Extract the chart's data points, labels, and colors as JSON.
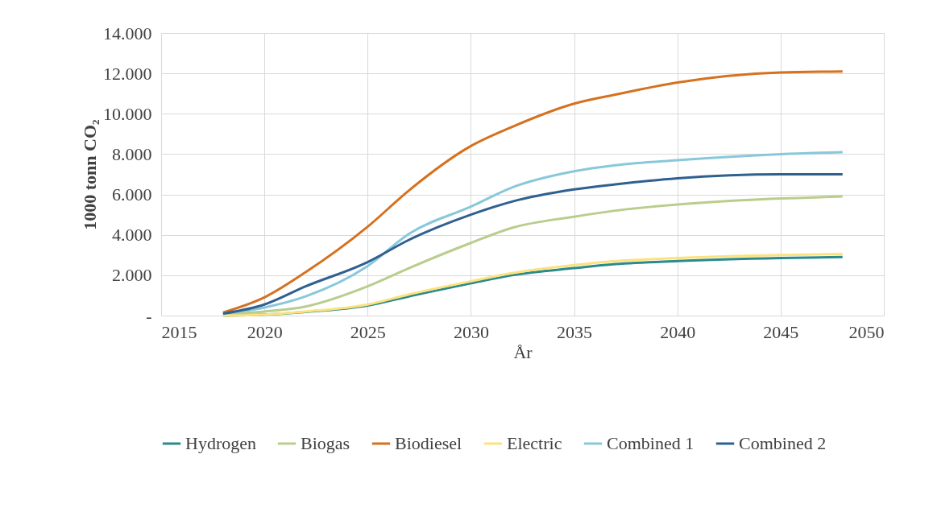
{
  "chart_data": {
    "type": "line",
    "xlabel": "År",
    "ylabel": "1000 tonn CO₂",
    "x": [
      2018,
      2020,
      2022,
      2025,
      2027,
      2030,
      2032,
      2035,
      2037,
      2040,
      2045,
      2048
    ],
    "series": [
      {
        "name": "Hydrogen",
        "color": "#2a8a8c",
        "values": [
          0,
          50,
          180,
          500,
          950,
          1600,
          2000,
          2350,
          2550,
          2700,
          2850,
          2900
        ]
      },
      {
        "name": "Biogas",
        "color": "#b9cd8c",
        "values": [
          50,
          200,
          450,
          1450,
          2350,
          3600,
          4350,
          4900,
          5200,
          5500,
          5800,
          5900
        ]
      },
      {
        "name": "Biodiesel",
        "color": "#d5711f",
        "values": [
          150,
          900,
          2150,
          4400,
          6200,
          8400,
          9350,
          10500,
          10950,
          11550,
          12050,
          12100
        ]
      },
      {
        "name": "Electric",
        "color": "#fce27e",
        "values": [
          0,
          50,
          200,
          550,
          1050,
          1700,
          2100,
          2500,
          2700,
          2850,
          3000,
          3050
        ]
      },
      {
        "name": "Combined 1",
        "color": "#88c8da",
        "values": [
          100,
          400,
          950,
          2450,
          4050,
          5400,
          6350,
          7150,
          7450,
          7700,
          8000,
          8100
        ]
      },
      {
        "name": "Combined 2",
        "color": "#2f6090",
        "values": [
          100,
          550,
          1450,
          2650,
          3750,
          5000,
          5650,
          6250,
          6500,
          6800,
          7000,
          7000
        ]
      }
    ],
    "xlim": [
      2015,
      2050
    ],
    "xticks": [
      2015,
      2020,
      2025,
      2030,
      2035,
      2040,
      2045,
      2050
    ],
    "ylim": [
      0,
      14000
    ],
    "yticks": [
      {
        "value": 0,
        "label": "-"
      },
      {
        "value": 2000,
        "label": "2.000"
      },
      {
        "value": 4000,
        "label": "4.000"
      },
      {
        "value": 6000,
        "label": "6.000"
      },
      {
        "value": 8000,
        "label": "8.000"
      },
      {
        "value": 10000,
        "label": "10.000"
      },
      {
        "value": 12000,
        "label": "12.000"
      },
      {
        "value": 14000,
        "label": "14.000"
      }
    ],
    "grid": true,
    "legend": "bottom",
    "line_style": "solid",
    "marker": "none"
  }
}
